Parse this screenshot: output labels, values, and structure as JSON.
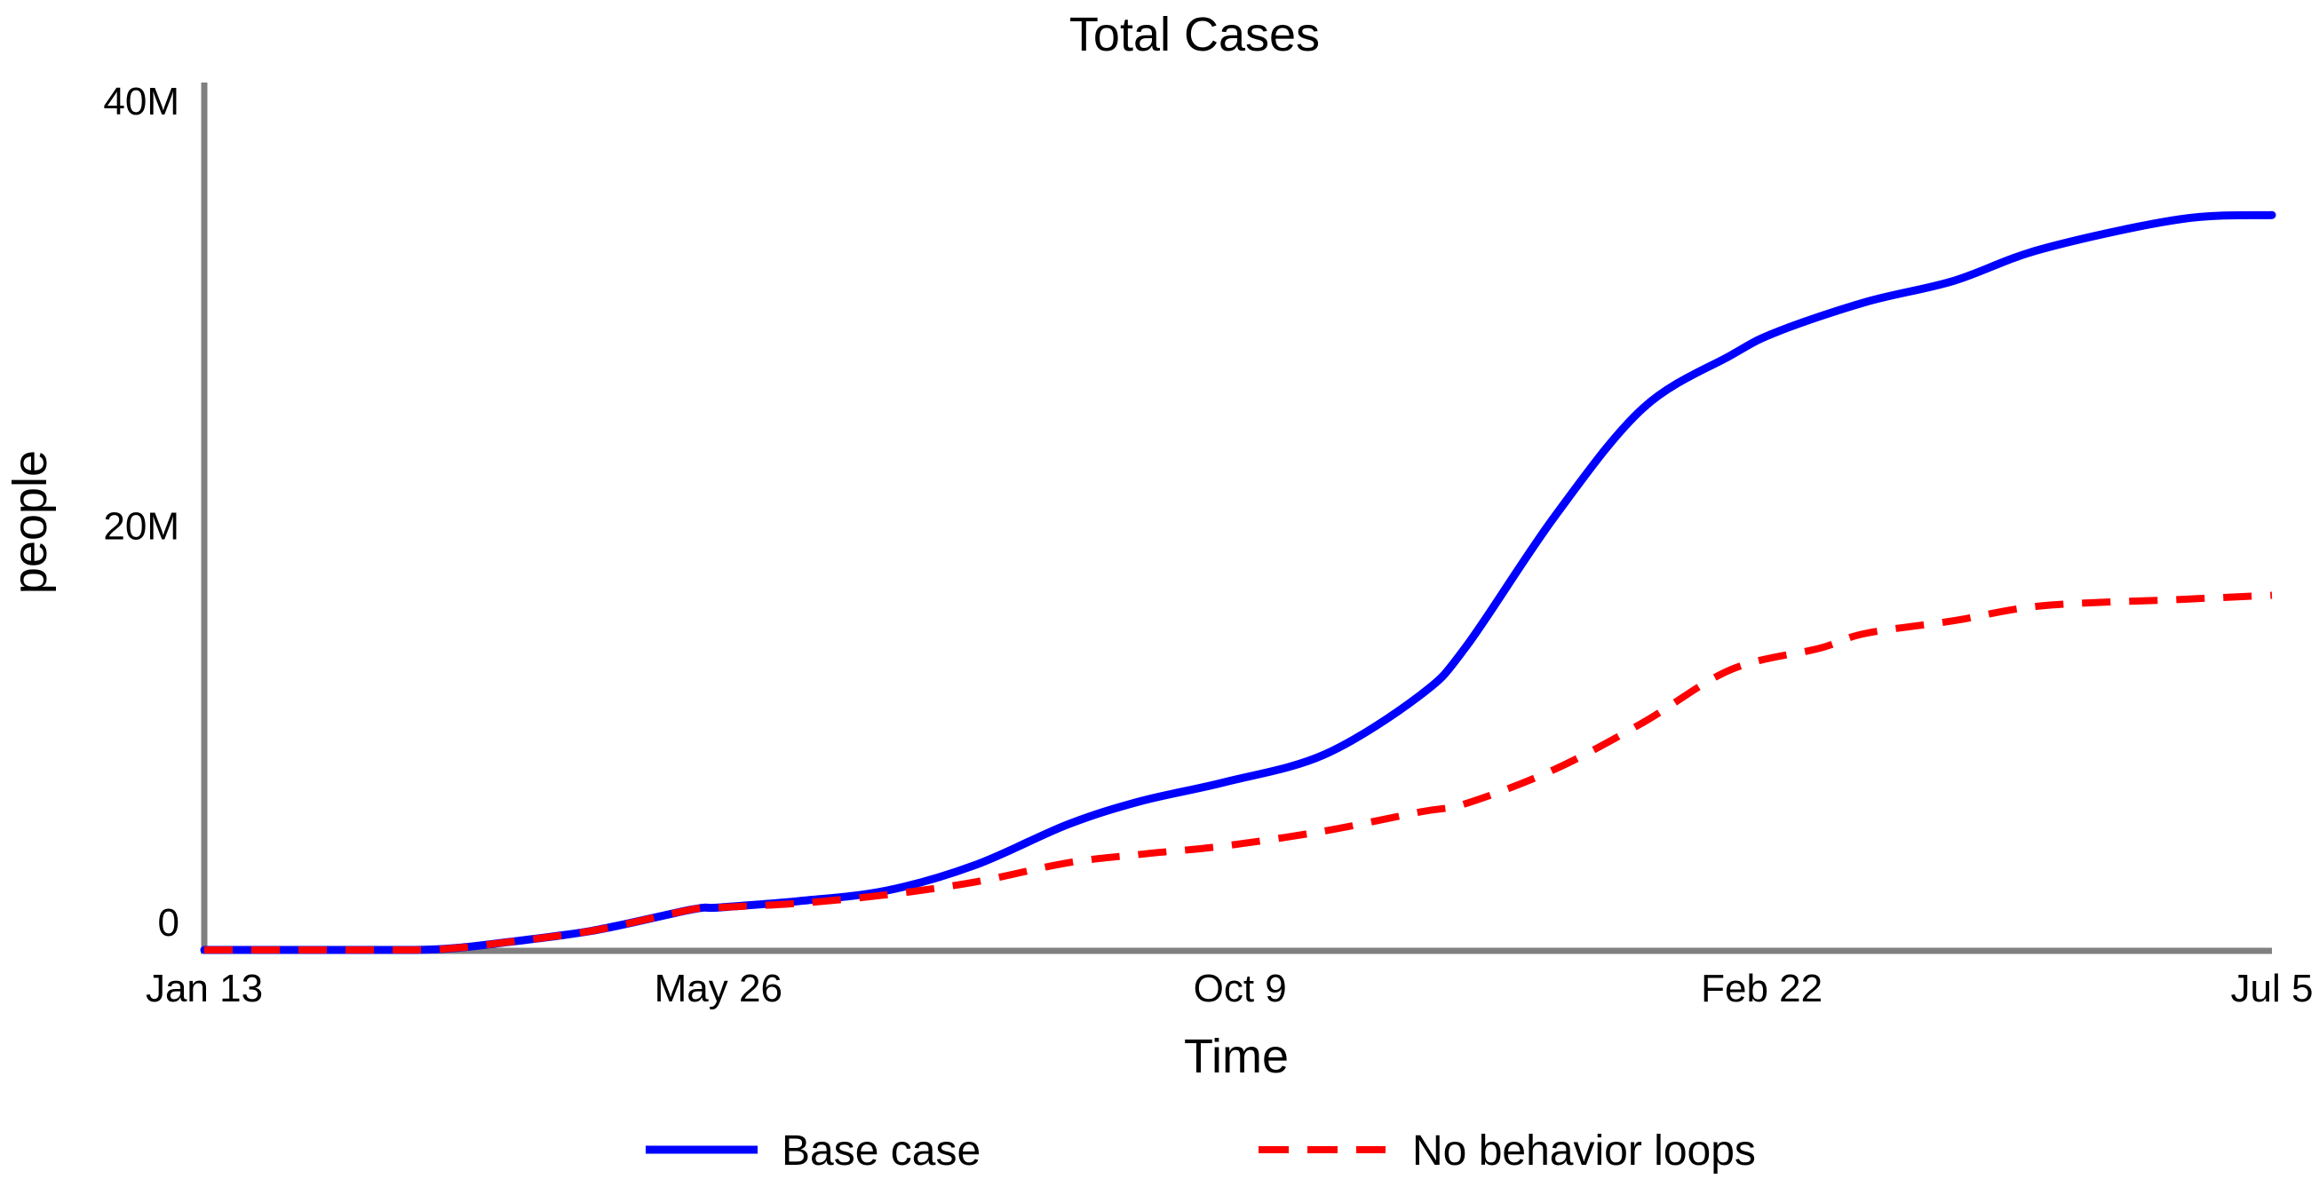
{
  "page": {
    "background": "#ffffff"
  },
  "chart_data": {
    "type": "line",
    "title": "Total Cases",
    "xlabel": "Time",
    "ylabel": "people",
    "grid": false,
    "legend_position": "bottom",
    "axis_color": "#808080",
    "xlim_days": [
      0,
      539
    ],
    "x_ticks": [
      {
        "day": 0,
        "label": "Jan 13"
      },
      {
        "day": 134,
        "label": "May 26"
      },
      {
        "day": 270,
        "label": "Oct 9"
      },
      {
        "day": 406,
        "label": "Feb 22"
      },
      {
        "day": 539,
        "label": "Jul 5"
      }
    ],
    "ylim_millions": [
      0,
      40
    ],
    "y_unit": "millions of people",
    "y_ticks": [
      {
        "value": 0,
        "label": "0"
      },
      {
        "value": 20,
        "label": "20M"
      },
      {
        "value": 40,
        "label": "40M"
      }
    ],
    "series": [
      {
        "name": "Base case",
        "color": "#0000ff",
        "line_style": "solid",
        "points": [
          [
            0,
            0
          ],
          [
            30,
            0
          ],
          [
            55,
            0
          ],
          [
            66,
            0.1
          ],
          [
            76,
            0.3
          ],
          [
            101,
            0.9
          ],
          [
            127,
            1.9
          ],
          [
            134,
            2.0
          ],
          [
            155,
            2.3
          ],
          [
            178,
            2.8
          ],
          [
            201,
            4.0
          ],
          [
            225,
            5.9
          ],
          [
            244,
            7.0
          ],
          [
            266,
            7.9
          ],
          [
            292,
            9.2
          ],
          [
            317,
            12.0
          ],
          [
            329,
            14.3
          ],
          [
            352,
            20.4
          ],
          [
            375,
            25.5
          ],
          [
            398,
            28.0
          ],
          [
            410,
            29.1
          ],
          [
            433,
            30.5
          ],
          [
            456,
            31.5
          ],
          [
            479,
            33.0
          ],
          [
            515,
            34.4
          ],
          [
            539,
            34.6
          ]
        ]
      },
      {
        "name": "No behavior loops",
        "color": "#ff0000",
        "line_style": "dashed",
        "points": [
          [
            0,
            0
          ],
          [
            30,
            0
          ],
          [
            55,
            0
          ],
          [
            66,
            0.1
          ],
          [
            76,
            0.3
          ],
          [
            101,
            0.9
          ],
          [
            127,
            1.9
          ],
          [
            134,
            2.0
          ],
          [
            155,
            2.2
          ],
          [
            178,
            2.6
          ],
          [
            201,
            3.2
          ],
          [
            225,
            4.1
          ],
          [
            244,
            4.5
          ],
          [
            266,
            4.9
          ],
          [
            292,
            5.6
          ],
          [
            317,
            6.5
          ],
          [
            329,
            6.9
          ],
          [
            352,
            8.5
          ],
          [
            375,
            10.7
          ],
          [
            398,
            13.2
          ],
          [
            421,
            14.2
          ],
          [
            433,
            14.9
          ],
          [
            456,
            15.5
          ],
          [
            479,
            16.2
          ],
          [
            515,
            16.5
          ],
          [
            539,
            16.7
          ]
        ]
      }
    ]
  }
}
